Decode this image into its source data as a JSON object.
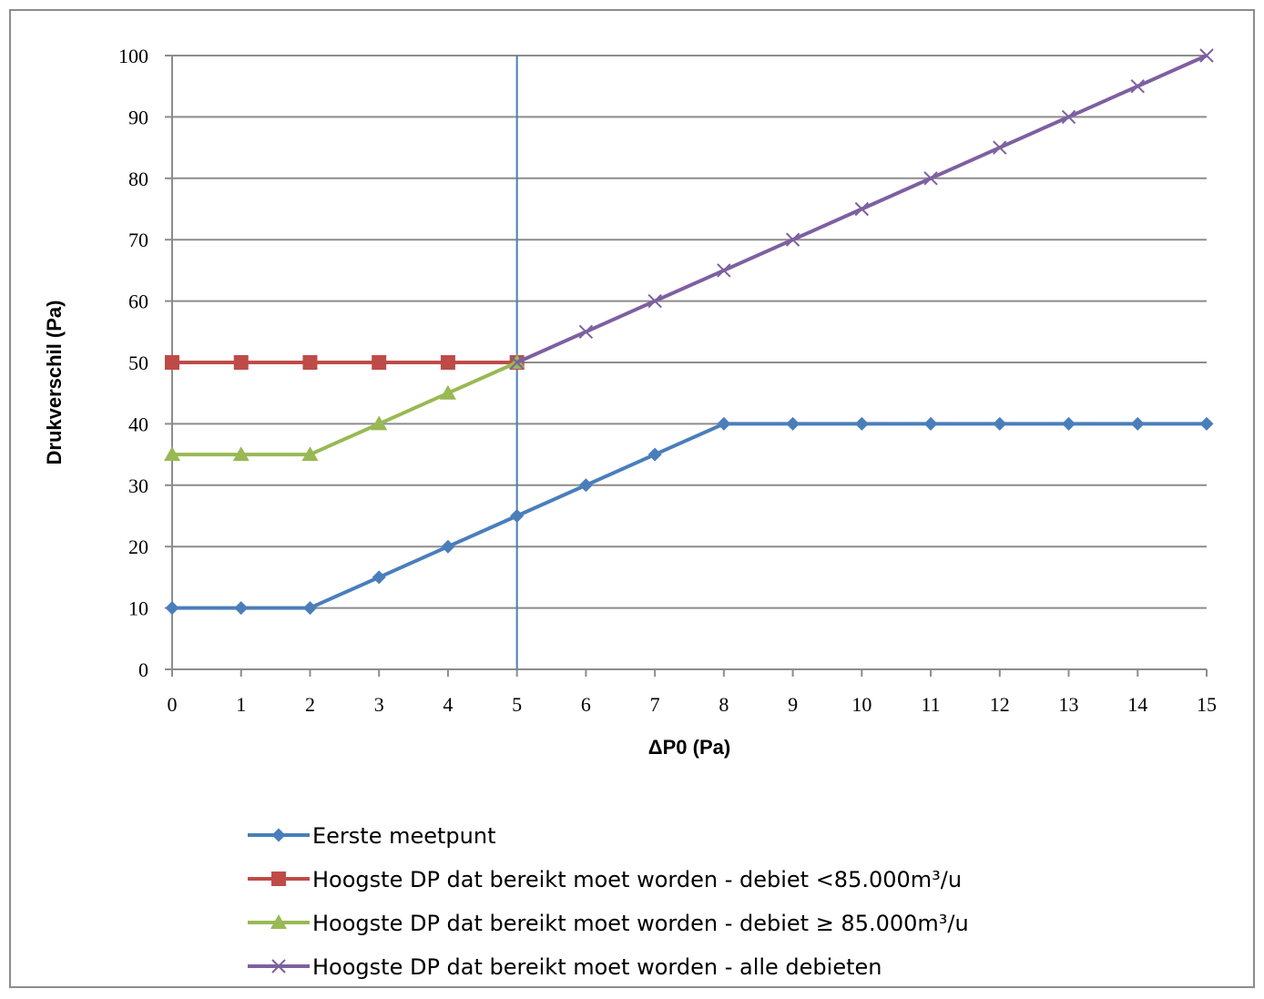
{
  "chart_data": {
    "type": "line",
    "title": "",
    "xlabel": "ΔP0 (Pa)",
    "ylabel": "Drukverschil  (Pa)",
    "xlim": [
      0,
      15
    ],
    "ylim": [
      0,
      100
    ],
    "x_ticks": [
      "0",
      "1",
      "2",
      "3",
      "4",
      "5",
      "6",
      "7",
      "8",
      "9",
      "10",
      "11",
      "12",
      "13",
      "14",
      "15"
    ],
    "y_ticks": [
      "0",
      "10",
      "20",
      "30",
      "40",
      "50",
      "60",
      "70",
      "80",
      "90",
      "100"
    ],
    "grid": "horizontal",
    "legend_position": "bottom",
    "reference_line": {
      "x": 5,
      "color": "#4a7ebb"
    },
    "series": [
      {
        "name": "Eerste meetpunt",
        "color": "#4a7ebb",
        "marker": "diamond",
        "x": [
          0,
          1,
          2,
          3,
          4,
          5,
          6,
          7,
          8,
          9,
          10,
          11,
          12,
          13,
          14,
          15
        ],
        "values": [
          10,
          10,
          10,
          15,
          20,
          25,
          30,
          35,
          40,
          40,
          40,
          40,
          40,
          40,
          40,
          40
        ]
      },
      {
        "name": "Hoogste DP dat bereikt moet worden - debiet <85.000m³/u",
        "color": "#be4b48",
        "marker": "square",
        "x": [
          0,
          1,
          2,
          3,
          4,
          5
        ],
        "values": [
          50,
          50,
          50,
          50,
          50,
          50
        ]
      },
      {
        "name": "Hoogste DP dat bereikt moet worden - debiet ≥ 85.000m³/u",
        "color": "#98b954",
        "marker": "triangle",
        "x": [
          0,
          1,
          2,
          3,
          4,
          5
        ],
        "values": [
          35,
          35,
          35,
          40,
          45,
          50
        ]
      },
      {
        "name": "Hoogste DP dat bereikt moet worden - alle debieten",
        "color": "#7d60a0",
        "marker": "x",
        "x": [
          5,
          6,
          7,
          8,
          9,
          10,
          11,
          12,
          13,
          14,
          15
        ],
        "values": [
          50,
          55,
          60,
          65,
          70,
          75,
          80,
          85,
          90,
          95,
          100
        ]
      }
    ]
  }
}
